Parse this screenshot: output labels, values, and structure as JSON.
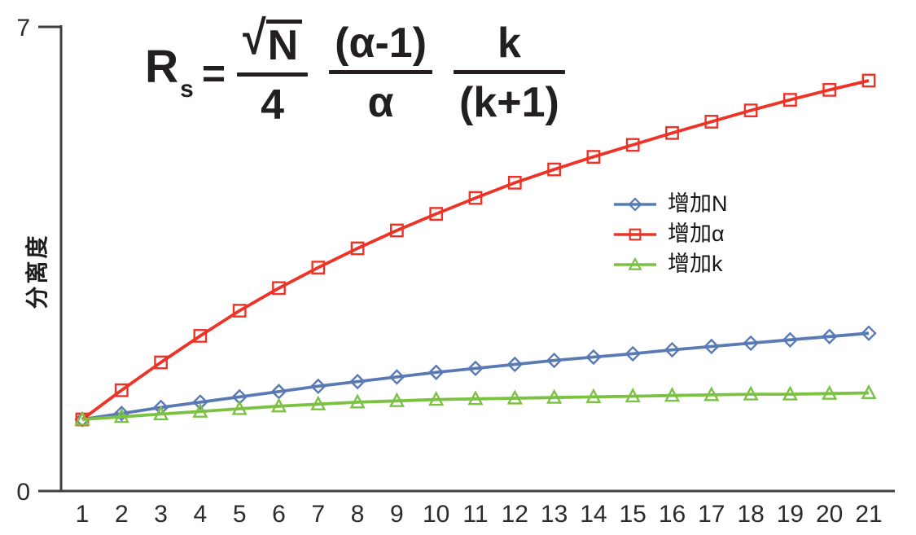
{
  "formula": {
    "lhs": "R",
    "lhs_sub": "s",
    "equals": "=",
    "radical_sign": "√",
    "frac1_num": "N",
    "frac1_den": "4",
    "frac2_num": "(α-1)",
    "frac2_den": "α",
    "frac3_num": "k",
    "frac3_den": "(k+1)"
  },
  "chart_data": {
    "type": "line",
    "title": "",
    "xlabel": "",
    "ylabel": "分离度",
    "ylim": [
      0,
      7
    ],
    "y_ticks": [
      0,
      7
    ],
    "grid": false,
    "legend_position": "right-middle",
    "axis_color": "#3f3f41",
    "text_color": "#2b2b2d",
    "x": [
      1,
      2,
      3,
      4,
      5,
      6,
      7,
      8,
      9,
      10,
      11,
      12,
      13,
      14,
      15,
      16,
      17,
      18,
      19,
      20,
      21
    ],
    "series": [
      {
        "id": "increase-N",
        "name": "增加N",
        "color": "#5a7ab5",
        "marker": "diamond",
        "values": [
          1.08,
          1.17,
          1.26,
          1.34,
          1.42,
          1.5,
          1.58,
          1.65,
          1.72,
          1.79,
          1.85,
          1.91,
          1.97,
          2.02,
          2.07,
          2.13,
          2.18,
          2.23,
          2.28,
          2.33,
          2.38
        ]
      },
      {
        "id": "increase-alpha",
        "name": "增加α",
        "color": "#ee3226",
        "marker": "square",
        "values": [
          1.08,
          1.52,
          1.94,
          2.34,
          2.72,
          3.06,
          3.37,
          3.66,
          3.93,
          4.18,
          4.42,
          4.65,
          4.85,
          5.04,
          5.22,
          5.4,
          5.57,
          5.74,
          5.9,
          6.05,
          6.19
        ]
      },
      {
        "id": "increase-k",
        "name": "增加k",
        "color": "#7cc242",
        "marker": "triangle",
        "values": [
          1.08,
          1.12,
          1.16,
          1.2,
          1.24,
          1.28,
          1.31,
          1.34,
          1.36,
          1.38,
          1.39,
          1.4,
          1.41,
          1.42,
          1.43,
          1.44,
          1.45,
          1.46,
          1.46,
          1.47,
          1.48
        ]
      }
    ]
  }
}
